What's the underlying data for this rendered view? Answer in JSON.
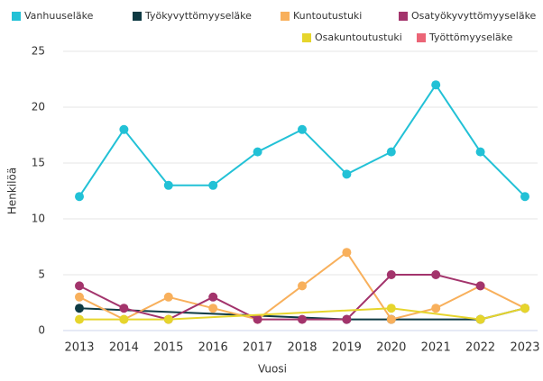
{
  "chart_data": {
    "type": "line",
    "categories": [
      "2013",
      "2014",
      "2015",
      "2016",
      "2017",
      "2018",
      "2019",
      "2020",
      "2021",
      "2022",
      "2023"
    ],
    "series": [
      {
        "name": "Vanhuuseläke",
        "color": "#22c1d6",
        "values": [
          12,
          18,
          13,
          13,
          16,
          18,
          14,
          16,
          22,
          16,
          12
        ]
      },
      {
        "name": "Työkyvyttömyyseläke",
        "color": "#0e3a43",
        "values": [
          2,
          null,
          null,
          null,
          null,
          null,
          1,
          1,
          null,
          1,
          2
        ]
      },
      {
        "name": "Kuntoutustuki",
        "color": "#f8b05c",
        "values": [
          3,
          1,
          3,
          2,
          1,
          4,
          7,
          1,
          2,
          4,
          2
        ]
      },
      {
        "name": "Osatyökyvyttömyyseläke",
        "color": "#a3346c",
        "values": [
          4,
          2,
          1,
          3,
          1,
          1,
          1,
          5,
          5,
          4,
          null
        ]
      },
      {
        "name": "Osakuntoutustuki",
        "color": "#e6d52c",
        "values": [
          1,
          1,
          1,
          null,
          null,
          null,
          null,
          2,
          null,
          1,
          2
        ]
      },
      {
        "name": "Työttömyyseläke",
        "color": "#eb6577",
        "values": [
          null,
          null,
          null,
          null,
          null,
          null,
          null,
          null,
          null,
          null,
          null
        ]
      }
    ],
    "connect_nulls": true,
    "x_label": "Vuosi",
    "y_label": "Henkilöä",
    "ylim": [
      0,
      25
    ],
    "yticks": [
      0,
      5,
      10,
      15,
      20,
      25
    ],
    "grid": true
  }
}
